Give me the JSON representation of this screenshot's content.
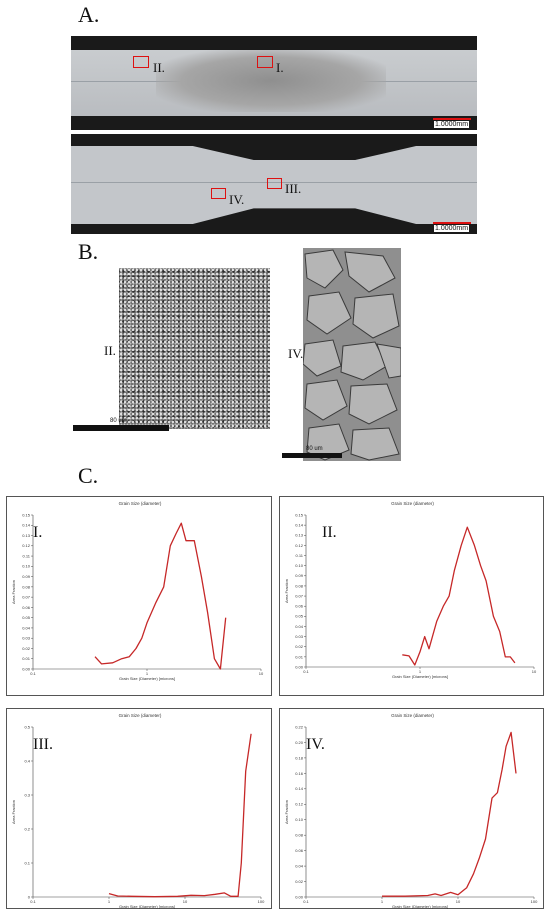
{
  "figure": {
    "labels": {
      "a": "A.",
      "b": "B.",
      "c": "C."
    },
    "panel_a": {
      "top_rois": [
        "II.",
        "I."
      ],
      "bottom_rois": [
        "IV.",
        "III."
      ],
      "scale_text": "1.0000mm"
    },
    "panel_b": {
      "left_label": "II.",
      "right_label": "IV.",
      "scale_text": "80 um"
    }
  },
  "chart_data": [
    {
      "type": "line",
      "panel": "I.",
      "title": "Grain Size (diameter)",
      "xlabel": "Grain Size (Diameter) [microns]",
      "ylabel": "Area Fraction",
      "xscale": "log",
      "xlim": [
        0.1,
        10
      ],
      "xticks": [
        "0.1",
        "1",
        "10"
      ],
      "ylim": [
        0,
        0.15
      ],
      "yticks": [
        "0.00",
        "0.01",
        "0.02",
        "0.03",
        "0.04",
        "0.05",
        "0.06",
        "0.07",
        "0.08",
        "0.09",
        "0.10",
        "0.11",
        "0.12",
        "0.13",
        "0.14",
        "0.15"
      ],
      "color": "#c62828",
      "series": [
        {
          "values": [
            [
              0.35,
              0.012
            ],
            [
              0.4,
              0.005
            ],
            [
              0.5,
              0.006
            ],
            [
              0.6,
              0.01
            ],
            [
              0.7,
              0.012
            ],
            [
              0.8,
              0.02
            ],
            [
              0.9,
              0.03
            ],
            [
              1.0,
              0.045
            ],
            [
              1.2,
              0.065
            ],
            [
              1.4,
              0.08
            ],
            [
              1.6,
              0.12
            ],
            [
              1.8,
              0.132
            ],
            [
              2.0,
              0.142
            ],
            [
              2.2,
              0.125
            ],
            [
              2.6,
              0.125
            ],
            [
              3.0,
              0.09
            ],
            [
              3.4,
              0.055
            ],
            [
              3.9,
              0.01
            ],
            [
              4.4,
              0.0
            ],
            [
              4.9,
              0.05
            ]
          ]
        }
      ]
    },
    {
      "type": "line",
      "panel": "II.",
      "title": "Grain Size (diameter)",
      "xlabel": "Grain Size (Diameter) [microns]",
      "ylabel": "Area Fraction",
      "xscale": "log",
      "xlim": [
        0.1,
        10
      ],
      "xticks": [
        "0.1",
        "1",
        "10"
      ],
      "ylim": [
        0,
        0.15
      ],
      "yticks": [
        "0.00",
        "0.01",
        "0.02",
        "0.03",
        "0.04",
        "0.05",
        "0.06",
        "0.07",
        "0.08",
        "0.09",
        "0.10",
        "0.11",
        "0.12",
        "0.13",
        "0.14",
        "0.15"
      ],
      "color": "#c62828",
      "series": [
        {
          "values": [
            [
              0.7,
              0.012
            ],
            [
              0.8,
              0.011
            ],
            [
              0.9,
              0.002
            ],
            [
              1.0,
              0.015
            ],
            [
              1.1,
              0.03
            ],
            [
              1.2,
              0.018
            ],
            [
              1.4,
              0.045
            ],
            [
              1.6,
              0.06
            ],
            [
              1.8,
              0.07
            ],
            [
              2.0,
              0.095
            ],
            [
              2.3,
              0.12
            ],
            [
              2.6,
              0.138
            ],
            [
              3.0,
              0.12
            ],
            [
              3.4,
              0.1
            ],
            [
              3.8,
              0.085
            ],
            [
              4.4,
              0.05
            ],
            [
              5.0,
              0.035
            ],
            [
              5.6,
              0.01
            ],
            [
              6.2,
              0.01
            ],
            [
              6.8,
              0.004
            ]
          ]
        }
      ]
    },
    {
      "type": "line",
      "panel": "III.",
      "title": "Grain Size (diameter)",
      "xlabel": "Grain Size (Diameter) [microns]",
      "ylabel": "Area Fraction",
      "xscale": "log",
      "xlim": [
        0.1,
        100
      ],
      "xticks": [
        "0.1",
        "1",
        "10",
        "100"
      ],
      "ylim": [
        0,
        0.5
      ],
      "yticks": [
        "0",
        "0.1",
        "0.2",
        "0.3",
        "0.4",
        "0.5"
      ],
      "color": "#c62828",
      "series": [
        {
          "values": [
            [
              1.0,
              0.01
            ],
            [
              1.3,
              0.003
            ],
            [
              2,
              0.002
            ],
            [
              4,
              0.001
            ],
            [
              8,
              0.002
            ],
            [
              12,
              0.005
            ],
            [
              18,
              0.004
            ],
            [
              25,
              0.008
            ],
            [
              33,
              0.012
            ],
            [
              40,
              0.002
            ],
            [
              50,
              0.002
            ],
            [
              55,
              0.1
            ],
            [
              63,
              0.37
            ],
            [
              74,
              0.48
            ]
          ]
        }
      ]
    },
    {
      "type": "line",
      "panel": "IV.",
      "title": "Grain Size (diameter)",
      "xlabel": "Grain Size (Diameter) [microns]",
      "ylabel": "Area Fraction",
      "xscale": "log",
      "xlim": [
        0.1,
        100
      ],
      "xticks": [
        "0.1",
        "1",
        "10",
        "100"
      ],
      "ylim": [
        0,
        0.22
      ],
      "yticks": [
        "0.00",
        "0.02",
        "0.04",
        "0.06",
        "0.08",
        "0.10",
        "0.12",
        "0.14",
        "0.16",
        "0.18",
        "0.20",
        "0.22"
      ],
      "color": "#c62828",
      "series": [
        {
          "values": [
            [
              1.0,
              0.001
            ],
            [
              2,
              0.001
            ],
            [
              4,
              0.002
            ],
            [
              5,
              0.004
            ],
            [
              6,
              0.002
            ],
            [
              8,
              0.006
            ],
            [
              10,
              0.003
            ],
            [
              13,
              0.012
            ],
            [
              16,
              0.03
            ],
            [
              19,
              0.05
            ],
            [
              23,
              0.075
            ],
            [
              28,
              0.128
            ],
            [
              33,
              0.135
            ],
            [
              38,
              0.165
            ],
            [
              43,
              0.195
            ],
            [
              50,
              0.213
            ],
            [
              58,
              0.16
            ]
          ]
        }
      ]
    }
  ]
}
